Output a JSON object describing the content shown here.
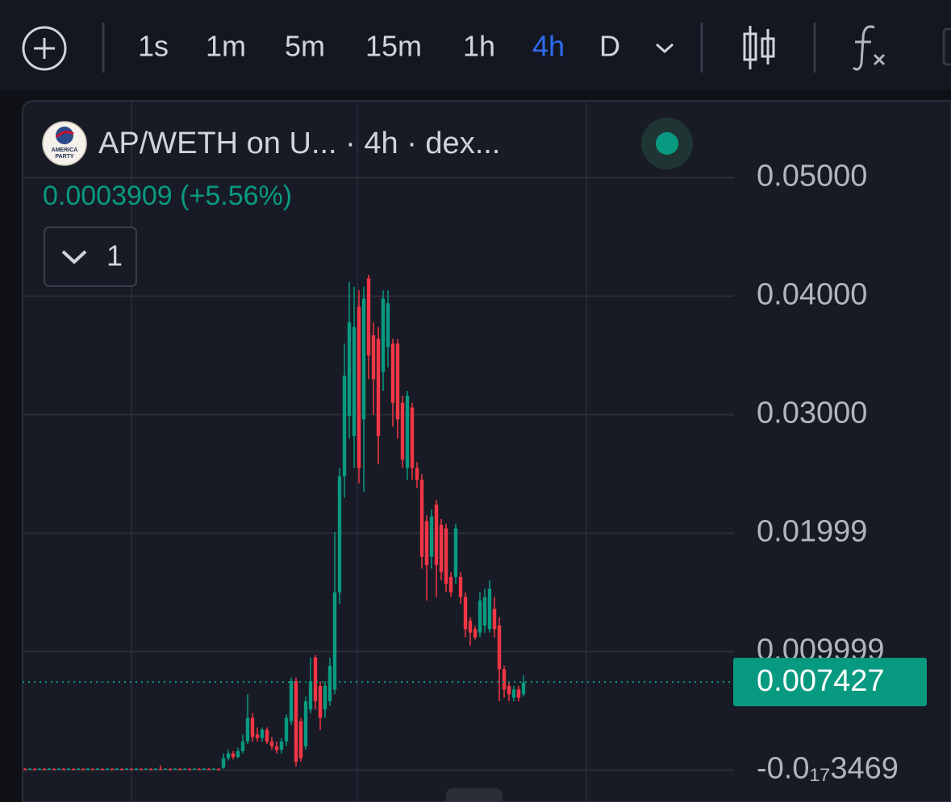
{
  "toolbar": {
    "intervals": [
      "1s",
      "1m",
      "5m",
      "15m",
      "1h",
      "4h",
      "D"
    ],
    "active": "4h",
    "active_color": "#2f6bf0"
  },
  "chart_data": {
    "type": "candlestick",
    "title": "AP/WETH on U... · 4h · dex...",
    "logo_text": [
      "AMERICA",
      "PARTY"
    ],
    "change": "0.0003909 (+5.56%)",
    "indicators_count": "1",
    "up_color": "#089981",
    "down_color": "#f23645",
    "grid": true,
    "ylim": [
      -0.0027,
      0.0565
    ],
    "yticks": [
      {
        "value": 0.05,
        "label": "0.05000"
      },
      {
        "value": 0.04,
        "label": "0.04000"
      },
      {
        "value": 0.03,
        "label": "0.03000"
      },
      0.01999,
      0.009999,
      {
        "value": -3.469e-18,
        "label": "-0.0₁₇3469"
      }
    ],
    "last_price": 0.007427,
    "open": [
      0.0001,
      0.0001,
      0.0001,
      0.0001,
      0.0001,
      0.0001,
      0.0001,
      0.0001,
      0.0001,
      0.0001,
      0.0001,
      0.0001,
      0.0001,
      0.0001,
      0.0001,
      0.0001,
      0.0001,
      0.0001,
      0.0001,
      0.0001,
      0.0001,
      0.0001,
      0.0001,
      0.0001,
      0.0001,
      0.0001,
      0.0001,
      0.0001,
      0.0001,
      0.0001,
      0.0001,
      0.0001,
      0.0001,
      0.0001,
      0.0001,
      0.0001,
      0.0001,
      0.0001,
      0.0001,
      0.0001,
      0.0001,
      0.0002,
      0.001,
      0.0014,
      0.0011,
      0.0016,
      0.0024,
      0.0044,
      0.003,
      0.0027,
      0.0034,
      0.0024,
      0.002,
      0.0017,
      0.0024,
      0.0041,
      0.0075,
      0.0041,
      0.002,
      0.0051,
      0.0095,
      0.0071,
      0.0051,
      0.0058,
      0.0068,
      0.015,
      0.0248,
      0.0299,
      0.0282,
      0.0391,
      0.0296,
      0.0415,
      0.0367,
      0.0364,
      0.0336,
      0.0357,
      0.036,
      0.036,
      0.031,
      0.0255,
      0.0306,
      0.0255,
      0.0245,
      0.021,
      0.018,
      0.0224,
      0.0207,
      0.0204,
      0.0163,
      0.0163,
      0.0163,
      0.0146,
      0.0126,
      0.0119,
      0.0116,
      0.0122,
      0.0119,
      0.0136,
      0.0122,
      0.0085,
      0.0071,
      0.0061,
      0.0068,
      0.0064
    ],
    "high": [
      0.00015,
      0.00015,
      0.00015,
      0.00015,
      0.00015,
      0.00015,
      0.00015,
      0.00015,
      0.00015,
      0.00015,
      0.00015,
      0.00015,
      0.00015,
      0.00015,
      0.00015,
      0.00015,
      0.00015,
      0.00015,
      0.00015,
      0.00015,
      0.00015,
      0.00015,
      0.00015,
      0.00015,
      0.00015,
      0.00015,
      0.00015,
      0.00015,
      0.0004,
      0.00015,
      0.00015,
      0.00015,
      0.00015,
      0.00015,
      0.00015,
      0.00015,
      0.00015,
      0.00015,
      0.00015,
      0.00015,
      0.00015,
      0.0014,
      0.0017,
      0.0016,
      0.0019,
      0.003,
      0.0064,
      0.0048,
      0.0036,
      0.0036,
      0.0036,
      0.0028,
      0.0024,
      0.0027,
      0.0047,
      0.0078,
      0.0078,
      0.0044,
      0.0062,
      0.0095,
      0.0097,
      0.0075,
      0.0075,
      0.0095,
      0.0201,
      0.0255,
      0.036,
      0.0412,
      0.0408,
      0.0405,
      0.0408,
      0.0418,
      0.0378,
      0.0374,
      0.0405,
      0.0405,
      0.0364,
      0.0364,
      0.0316,
      0.032,
      0.031,
      0.026,
      0.025,
      0.0215,
      0.022,
      0.0228,
      0.0212,
      0.0208,
      0.0167,
      0.0208,
      0.0167,
      0.015,
      0.0129,
      0.0122,
      0.015,
      0.0153,
      0.016,
      0.0146,
      0.0129,
      0.0088,
      0.0075,
      0.0071,
      0.0071,
      0.008
    ],
    "low": [
      5e-05,
      5e-05,
      5e-05,
      5e-05,
      5e-05,
      5e-05,
      5e-05,
      5e-05,
      5e-05,
      5e-05,
      5e-05,
      5e-05,
      5e-05,
      5e-05,
      5e-05,
      5e-05,
      5e-05,
      5e-05,
      5e-05,
      5e-05,
      5e-05,
      5e-05,
      5e-05,
      5e-05,
      5e-05,
      5e-05,
      5e-05,
      5e-05,
      5e-05,
      5e-05,
      5e-05,
      5e-05,
      5e-05,
      5e-05,
      5e-05,
      5e-05,
      5e-05,
      5e-05,
      5e-05,
      5e-05,
      5e-05,
      0.0001,
      0.0008,
      0.0009,
      0.001,
      0.0014,
      0.0022,
      0.0024,
      0.0024,
      0.0024,
      0.0022,
      0.0017,
      0.0014,
      0.0014,
      0.002,
      0.0038,
      0.0003,
      0.0007,
      0.0017,
      0.0048,
      0.0051,
      0.0034,
      0.0044,
      0.0054,
      0.0064,
      0.014,
      0.023,
      0.028,
      0.0255,
      0.0242,
      0.0235,
      0.033,
      0.03,
      0.0258,
      0.032,
      0.034,
      0.029,
      0.028,
      0.0255,
      0.0245,
      0.0245,
      0.0238,
      0.017,
      0.0143,
      0.017,
      0.0146,
      0.016,
      0.015,
      0.0146,
      0.0157,
      0.014,
      0.0112,
      0.0105,
      0.011,
      0.0112,
      0.0116,
      0.0116,
      0.0112,
      0.0058,
      0.0061,
      0.0058,
      0.0058,
      0.0058,
      0.0062
    ],
    "close": [
      8e-05,
      0.00012,
      8e-05,
      0.00012,
      8e-05,
      0.00012,
      8e-05,
      0.00012,
      8e-05,
      0.00012,
      8e-05,
      0.00012,
      8e-05,
      0.00012,
      8e-05,
      0.00012,
      8e-05,
      0.00012,
      8e-05,
      0.00012,
      8e-05,
      0.00012,
      8e-05,
      0.00012,
      8e-05,
      0.00012,
      8e-05,
      0.00012,
      8e-05,
      0.00012,
      8e-05,
      0.00012,
      8e-05,
      0.00012,
      8e-05,
      0.00012,
      8e-05,
      0.00012,
      8e-05,
      0.00012,
      8e-05,
      0.001,
      0.0014,
      0.0011,
      0.0016,
      0.0024,
      0.0044,
      0.0028,
      0.0027,
      0.0034,
      0.0024,
      0.002,
      0.0017,
      0.0024,
      0.0044,
      0.0075,
      0.0007,
      0.001,
      0.0058,
      0.0075,
      0.0058,
      0.0044,
      0.0071,
      0.0088,
      0.015,
      0.0248,
      0.0333,
      0.0378,
      0.0374,
      0.0255,
      0.0398,
      0.035,
      0.033,
      0.0282,
      0.0398,
      0.0394,
      0.031,
      0.0296,
      0.0262,
      0.0316,
      0.0255,
      0.0245,
      0.018,
      0.0173,
      0.0214,
      0.0173,
      0.0167,
      0.0157,
      0.015,
      0.0204,
      0.0146,
      0.0119,
      0.0116,
      0.0112,
      0.0143,
      0.0146,
      0.0153,
      0.0119,
      0.0085,
      0.0068,
      0.0064,
      0.0068,
      0.0061,
      0.0074
    ]
  }
}
